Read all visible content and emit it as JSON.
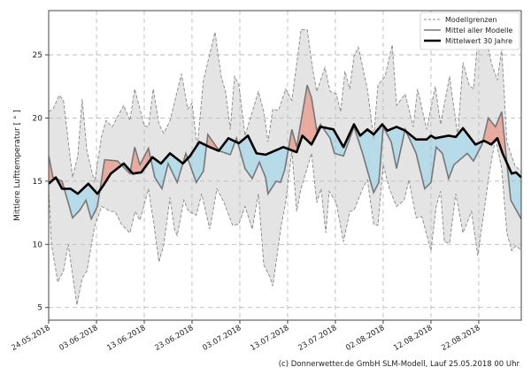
{
  "chart_data": {
    "type": "line",
    "x_unit": "days since 24.05.2018",
    "xlim": [
      0,
      98.9
    ],
    "ylim": [
      4,
      28.5
    ],
    "ylabel": "Mittlere Lufttemperatur [ ° ]",
    "grid": true,
    "x_ticks": [
      {
        "value": 0,
        "label": "24.05.2018"
      },
      {
        "value": 10,
        "label": "03.06.2018"
      },
      {
        "value": 20,
        "label": "13.06.2018"
      },
      {
        "value": 30,
        "label": "23.06.2018"
      },
      {
        "value": 40,
        "label": "03.07.2018"
      },
      {
        "value": 50,
        "label": "13.07.2018"
      },
      {
        "value": 60,
        "label": "23.07.2018"
      },
      {
        "value": 70,
        "label": "02.08.2018"
      },
      {
        "value": 80,
        "label": "12.08.2018"
      },
      {
        "value": 90,
        "label": "22.08.2018"
      }
    ],
    "y_ticks": [
      5,
      10,
      15,
      20,
      25
    ],
    "legend": {
      "placement": "top-right",
      "entries": [
        "Modellgrenzen",
        "Mittel aller Modelle",
        "Mittelwert 30 Jahre"
      ]
    },
    "colors": {
      "band": "#e4e4e4",
      "above": "#e8ab9e",
      "below": "#b7dbe8",
      "mean": "#777777",
      "climate": "#000000"
    },
    "series": [
      {
        "name": "Modellgrenzen (oben)",
        "points": [
          [
            0,
            20.5
          ],
          [
            0.9,
            20.7
          ],
          [
            2.2,
            21.8
          ],
          [
            3.1,
            21.4
          ],
          [
            5.0,
            15.3
          ],
          [
            6.1,
            17.0
          ],
          [
            7.0,
            21.5
          ],
          [
            8.0,
            17.4
          ],
          [
            9.6,
            14.9
          ],
          [
            11.1,
            18.6
          ],
          [
            12.0,
            19.8
          ],
          [
            13.3,
            19.3
          ],
          [
            15.7,
            21.0
          ],
          [
            17.0,
            19.8
          ],
          [
            18.0,
            22.3
          ],
          [
            20.0,
            19.4
          ],
          [
            20.9,
            19.3
          ],
          [
            21.9,
            22.3
          ],
          [
            23.1,
            19.5
          ],
          [
            24.1,
            18.8
          ],
          [
            25.4,
            19.8
          ],
          [
            27.8,
            23.5
          ],
          [
            29.1,
            20.7
          ],
          [
            30.0,
            21.2
          ],
          [
            31.1,
            17.7
          ],
          [
            32.4,
            23.0
          ],
          [
            34.8,
            26.8
          ],
          [
            36.1,
            23.3
          ],
          [
            37.0,
            22.1
          ],
          [
            38.0,
            19.1
          ],
          [
            38.9,
            23.3
          ],
          [
            39.8,
            22.6
          ],
          [
            41.1,
            18.6
          ],
          [
            43.9,
            22.1
          ],
          [
            45.0,
            20.5
          ],
          [
            45.4,
            19.5
          ],
          [
            45.9,
            18.1
          ],
          [
            46.9,
            20.7
          ],
          [
            48.1,
            20.6
          ],
          [
            49.6,
            22.3
          ],
          [
            50.9,
            21.4
          ],
          [
            52.2,
            25.1
          ],
          [
            52.8,
            27.0
          ],
          [
            54.1,
            27.0
          ],
          [
            55.2,
            24.0
          ],
          [
            56.1,
            22.1
          ],
          [
            57.8,
            24.0
          ],
          [
            58.9,
            22.1
          ],
          [
            60.2,
            21.9
          ],
          [
            61.1,
            20.5
          ],
          [
            62.0,
            23.7
          ],
          [
            63.0,
            22.3
          ],
          [
            63.9,
            24.9
          ],
          [
            64.8,
            25.6
          ],
          [
            66.7,
            22.3
          ],
          [
            68.0,
            18.4
          ],
          [
            68.9,
            22.6
          ],
          [
            70.4,
            23.3
          ],
          [
            71.9,
            25.8
          ],
          [
            72.8,
            21.0
          ],
          [
            74.6,
            21.9
          ],
          [
            76.3,
            19.3
          ],
          [
            77.2,
            22.3
          ],
          [
            79.1,
            19.1
          ],
          [
            80.9,
            22.5
          ],
          [
            82.0,
            19.5
          ],
          [
            83.9,
            23.3
          ],
          [
            85.6,
            18.6
          ],
          [
            86.7,
            24.4
          ],
          [
            88.0,
            22.6
          ],
          [
            88.9,
            22.3
          ],
          [
            89.8,
            26.3
          ],
          [
            91.3,
            27.0
          ],
          [
            92.6,
            24.4
          ],
          [
            93.9,
            23.0
          ],
          [
            94.8,
            25.5
          ],
          [
            95.9,
            18.1
          ],
          [
            97.6,
            16.2
          ],
          [
            98.9,
            15.8
          ]
        ]
      },
      {
        "name": "Modellgrenzen (unten)",
        "points": [
          [
            0,
            14.4
          ],
          [
            0.6,
            10.0
          ],
          [
            1.9,
            7.0
          ],
          [
            3.1,
            7.9
          ],
          [
            4.1,
            10.0
          ],
          [
            5.9,
            5.2
          ],
          [
            7.0,
            7.3
          ],
          [
            8.0,
            7.9
          ],
          [
            9.6,
            11.4
          ],
          [
            11.1,
            13.0
          ],
          [
            13.0,
            12.6
          ],
          [
            13.9,
            12.6
          ],
          [
            15.2,
            11.6
          ],
          [
            17.0,
            10.9
          ],
          [
            18.1,
            12.6
          ],
          [
            19.1,
            11.9
          ],
          [
            20.9,
            14.4
          ],
          [
            21.9,
            11.9
          ],
          [
            23.1,
            8.6
          ],
          [
            24.1,
            10.0
          ],
          [
            25.4,
            13.7
          ],
          [
            26.3,
            11.2
          ],
          [
            26.9,
            10.7
          ],
          [
            28.3,
            13.5
          ],
          [
            29.3,
            12.6
          ],
          [
            30.9,
            12.3
          ],
          [
            32.0,
            14.0
          ],
          [
            33.7,
            11.2
          ],
          [
            35.2,
            14.4
          ],
          [
            36.7,
            13.3
          ],
          [
            38.5,
            11.5
          ],
          [
            39.8,
            11.6
          ],
          [
            41.1,
            13.0
          ],
          [
            42.6,
            11.2
          ],
          [
            43.9,
            14.0
          ],
          [
            45.0,
            8.4
          ],
          [
            46.3,
            7.4
          ],
          [
            46.9,
            6.7
          ],
          [
            48.7,
            11.6
          ],
          [
            49.6,
            13.3
          ],
          [
            50.9,
            17.4
          ],
          [
            51.9,
            12.6
          ],
          [
            52.8,
            14.4
          ],
          [
            55.0,
            17.2
          ],
          [
            56.1,
            13.3
          ],
          [
            57.0,
            14.4
          ],
          [
            58.0,
            10.9
          ],
          [
            58.7,
            14.2
          ],
          [
            60.2,
            13.3
          ],
          [
            61.7,
            10.2
          ],
          [
            63.0,
            12.6
          ],
          [
            63.9,
            12.7
          ],
          [
            65.7,
            14.4
          ],
          [
            66.7,
            15.1
          ],
          [
            68.0,
            11.6
          ],
          [
            68.9,
            11.5
          ],
          [
            70.0,
            16.3
          ],
          [
            71.3,
            14.4
          ],
          [
            72.8,
            13.0
          ],
          [
            74.4,
            13.5
          ],
          [
            75.4,
            15.1
          ],
          [
            76.9,
            12.1
          ],
          [
            78.1,
            12.2
          ],
          [
            80.0,
            9.5
          ],
          [
            81.1,
            13.0
          ],
          [
            82.0,
            14.2
          ],
          [
            82.8,
            10.2
          ],
          [
            83.9,
            10.1
          ],
          [
            85.2,
            14.0
          ],
          [
            86.7,
            10.9
          ],
          [
            88.5,
            12.6
          ],
          [
            89.8,
            9.1
          ],
          [
            91.1,
            12.6
          ],
          [
            92.2,
            15.6
          ],
          [
            93.5,
            18.4
          ],
          [
            94.8,
            16.0
          ],
          [
            95.9,
            10.9
          ],
          [
            96.9,
            9.5
          ],
          [
            97.8,
            9.9
          ],
          [
            98.9,
            9.5
          ]
        ]
      },
      {
        "name": "Mittel aller Modelle",
        "points": [
          [
            0,
            17.0
          ],
          [
            0.9,
            15.3
          ],
          [
            2.8,
            15.0
          ],
          [
            5.0,
            12.1
          ],
          [
            6.5,
            12.7
          ],
          [
            7.8,
            13.5
          ],
          [
            8.9,
            12.0
          ],
          [
            10.2,
            13.0
          ],
          [
            11.7,
            16.7
          ],
          [
            14.4,
            16.6
          ],
          [
            17.0,
            15.6
          ],
          [
            18.0,
            17.7
          ],
          [
            19.1,
            16.3
          ],
          [
            20.9,
            17.6
          ],
          [
            22.2,
            15.3
          ],
          [
            23.7,
            14.4
          ],
          [
            25.0,
            16.4
          ],
          [
            26.9,
            14.9
          ],
          [
            28.7,
            17.2
          ],
          [
            30.9,
            14.9
          ],
          [
            32.4,
            15.8
          ],
          [
            33.3,
            18.7
          ],
          [
            35.7,
            17.4
          ],
          [
            38.0,
            17.1
          ],
          [
            39.3,
            18.4
          ],
          [
            41.1,
            16.0
          ],
          [
            42.6,
            15.2
          ],
          [
            44.1,
            16.5
          ],
          [
            45.4,
            15.3
          ],
          [
            45.9,
            14.0
          ],
          [
            47.6,
            15.0
          ],
          [
            48.5,
            14.9
          ],
          [
            49.4,
            15.9
          ],
          [
            50.9,
            19.1
          ],
          [
            51.9,
            17.7
          ],
          [
            54.1,
            22.6
          ],
          [
            55.0,
            21.6
          ],
          [
            56.1,
            19.0
          ],
          [
            56.9,
            19.5
          ],
          [
            58.9,
            18.4
          ],
          [
            59.8,
            17.2
          ],
          [
            61.7,
            17.0
          ],
          [
            63.9,
            19.3
          ],
          [
            65.7,
            17.2
          ],
          [
            68.0,
            14.1
          ],
          [
            69.1,
            14.9
          ],
          [
            70.0,
            19.3
          ],
          [
            71.7,
            18.1
          ],
          [
            72.8,
            16.0
          ],
          [
            74.6,
            19.1
          ],
          [
            76.9,
            17.2
          ],
          [
            78.7,
            14.4
          ],
          [
            80.0,
            14.9
          ],
          [
            81.1,
            17.7
          ],
          [
            82.4,
            17.2
          ],
          [
            83.7,
            15.2
          ],
          [
            84.8,
            16.3
          ],
          [
            87.6,
            17.2
          ],
          [
            88.9,
            16.6
          ],
          [
            90.7,
            17.9
          ],
          [
            92.0,
            20.0
          ],
          [
            93.5,
            19.3
          ],
          [
            94.8,
            20.5
          ],
          [
            96.7,
            13.5
          ],
          [
            98.9,
            12.0
          ]
        ]
      },
      {
        "name": "Mittelwert 30 Jahre",
        "points": [
          [
            0,
            14.8
          ],
          [
            1.5,
            15.3
          ],
          [
            2.8,
            14.4
          ],
          [
            4.6,
            14.4
          ],
          [
            6.1,
            14.0
          ],
          [
            8.3,
            14.8
          ],
          [
            10.2,
            14.0
          ],
          [
            11.5,
            14.7
          ],
          [
            13.0,
            15.6
          ],
          [
            15.7,
            16.4
          ],
          [
            17.6,
            15.6
          ],
          [
            19.4,
            15.7
          ],
          [
            21.7,
            16.9
          ],
          [
            23.5,
            16.4
          ],
          [
            25.4,
            17.2
          ],
          [
            28.1,
            16.4
          ],
          [
            29.6,
            17.0
          ],
          [
            31.5,
            18.1
          ],
          [
            33.7,
            17.7
          ],
          [
            35.6,
            17.4
          ],
          [
            37.6,
            18.4
          ],
          [
            39.8,
            18.0
          ],
          [
            41.7,
            18.6
          ],
          [
            43.5,
            17.2
          ],
          [
            45.4,
            17.1
          ],
          [
            49.1,
            17.7
          ],
          [
            51.9,
            17.3
          ],
          [
            53.1,
            18.6
          ],
          [
            55.0,
            17.9
          ],
          [
            56.9,
            19.3
          ],
          [
            59.6,
            19.1
          ],
          [
            61.7,
            17.7
          ],
          [
            63.9,
            19.5
          ],
          [
            65.2,
            18.6
          ],
          [
            66.7,
            19.1
          ],
          [
            68.0,
            18.7
          ],
          [
            69.8,
            19.5
          ],
          [
            70.9,
            19.0
          ],
          [
            72.8,
            19.3
          ],
          [
            74.6,
            19.0
          ],
          [
            76.9,
            18.3
          ],
          [
            79.1,
            18.3
          ],
          [
            80.0,
            18.6
          ],
          [
            80.9,
            18.4
          ],
          [
            83.7,
            18.6
          ],
          [
            85.2,
            18.5
          ],
          [
            86.7,
            19.2
          ],
          [
            89.3,
            17.9
          ],
          [
            91.1,
            18.2
          ],
          [
            92.6,
            17.9
          ],
          [
            93.9,
            18.4
          ],
          [
            95.0,
            17.2
          ],
          [
            96.9,
            15.6
          ],
          [
            97.8,
            15.7
          ],
          [
            98.9,
            15.3
          ]
        ]
      }
    ]
  },
  "footer": {
    "credit": "(c) Donnerwetter.de GmbH SLM-Modell, Lauf 25.05.2018 00 Uhr"
  }
}
